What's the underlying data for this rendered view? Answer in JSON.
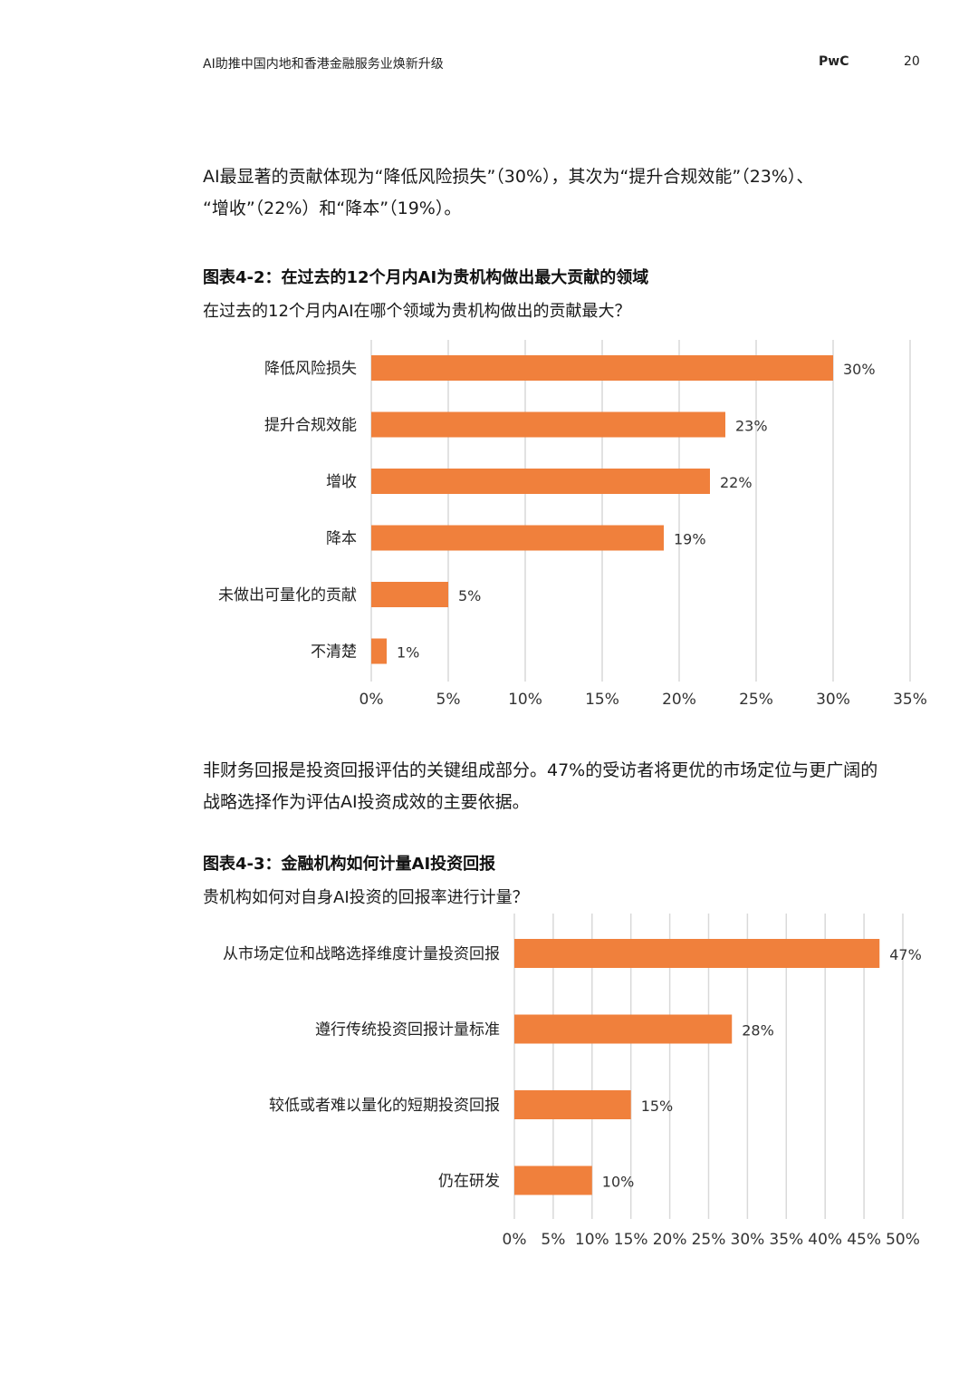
{
  "header": {
    "title": "AI助推中国内地和香港金融服务业焕新升级",
    "brand": "PwC",
    "page_number": "20"
  },
  "paragraph1": {
    "line1": "AI最显著的贡献体现为“降低风险损失”（30%），其次为“提升合规效能”（23%）、",
    "line2": "“增收”（22%）和“降本”（19%）。"
  },
  "figure1": {
    "title": "图表4-2：在过去的12个月内AI为贵机构做出最大贡献的领域",
    "subtitle": "在过去的12个月内AI在哪个领域为贵机构做出的贡献最大？"
  },
  "paragraph2": {
    "line1": "非财务回报是投资回报评估的关键组成部分。47%的受访者将更优的市场定位与更广阔的",
    "line2": "战略选择作为评估AI投资成效的主要依据。"
  },
  "figure2": {
    "title": "图表4-3：金融机构如何计量AI投资回报",
    "subtitle": "贵机构如何对自身AI投资的回报率进行计量？"
  },
  "chart_data": [
    {
      "type": "bar",
      "orientation": "horizontal",
      "categories": [
        "降低风险损失",
        "提升合规效能",
        "增收",
        "降本",
        "未做出可量化的贡献",
        "不清楚"
      ],
      "values": [
        30,
        23,
        22,
        19,
        5,
        1
      ],
      "value_labels": [
        "30%",
        "23%",
        "22%",
        "19%",
        "5%",
        "1%"
      ],
      "xlim": [
        0,
        35
      ],
      "ticks": [
        "0%",
        "5%",
        "10%",
        "15%",
        "20%",
        "25%",
        "30%",
        "35%"
      ],
      "grid": true,
      "bar_color": "#F0803C",
      "grid_color": "#D9D9D9"
    },
    {
      "type": "bar",
      "orientation": "horizontal",
      "categories": [
        "从市场定位和战略选择维度计量投资回报",
        "遵行传统投资回报计量标准",
        "较低或者难以量化的短期投资回报",
        "仍在研发"
      ],
      "values": [
        47,
        28,
        15,
        10
      ],
      "value_labels": [
        "47%",
        "28%",
        "15%",
        "10%"
      ],
      "xlim": [
        0,
        50
      ],
      "ticks": [
        "0%",
        "5%",
        "10%",
        "15%",
        "20%",
        "25%",
        "30%",
        "35%",
        "40%",
        "45%",
        "50%"
      ],
      "grid": true,
      "bar_color": "#F0803C",
      "grid_color": "#D9D9D9"
    }
  ]
}
